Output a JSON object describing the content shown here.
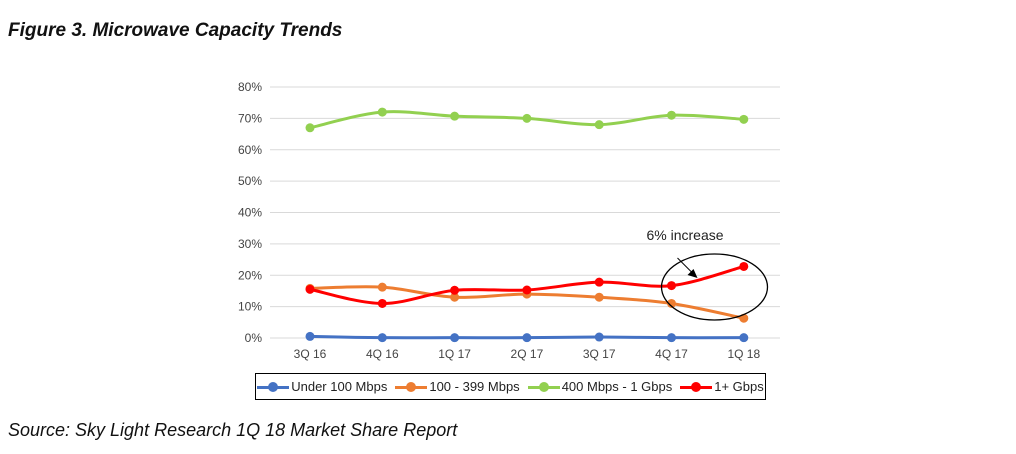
{
  "title": "Figure 3.  Microwave Capacity Trends",
  "source": "Source:  Sky Light Research 1Q 18 Market Share Report",
  "chart_data": {
    "type": "line",
    "title": "",
    "xlabel": "",
    "ylabel": "",
    "categories": [
      "3Q 16",
      "4Q 16",
      "1Q 17",
      "2Q 17",
      "3Q 17",
      "4Q 17",
      "1Q 18"
    ],
    "ylim": [
      0,
      80
    ],
    "yticks": [
      "0%",
      "10%",
      "20%",
      "30%",
      "40%",
      "50%",
      "60%",
      "70%",
      "80%"
    ],
    "grid": true,
    "legend_position": "bottom",
    "series": [
      {
        "name": "Under 100 Mbps",
        "color": "#4472C4",
        "values": [
          0.5,
          0.1,
          0.1,
          0.1,
          0.3,
          0.1,
          0.1
        ]
      },
      {
        "name": "100 - 399 Mbps",
        "color": "#ED7D31",
        "values": [
          15.8,
          16.2,
          13.0,
          14.0,
          13.0,
          11.0,
          6.3
        ]
      },
      {
        "name": "400 Mbps - 1 Gbps",
        "color": "#92D050",
        "values": [
          67.0,
          72.0,
          70.7,
          70.0,
          68.0,
          71.0,
          69.7
        ]
      },
      {
        "name": "1+ Gbps",
        "color": "#FF0000",
        "values": [
          15.5,
          11.0,
          15.2,
          15.3,
          17.8,
          16.7,
          22.8
        ]
      }
    ],
    "annotation": {
      "text": "6% increase",
      "target_series": "1+ Gbps",
      "from": "4Q 17",
      "to": "1Q 18"
    }
  }
}
